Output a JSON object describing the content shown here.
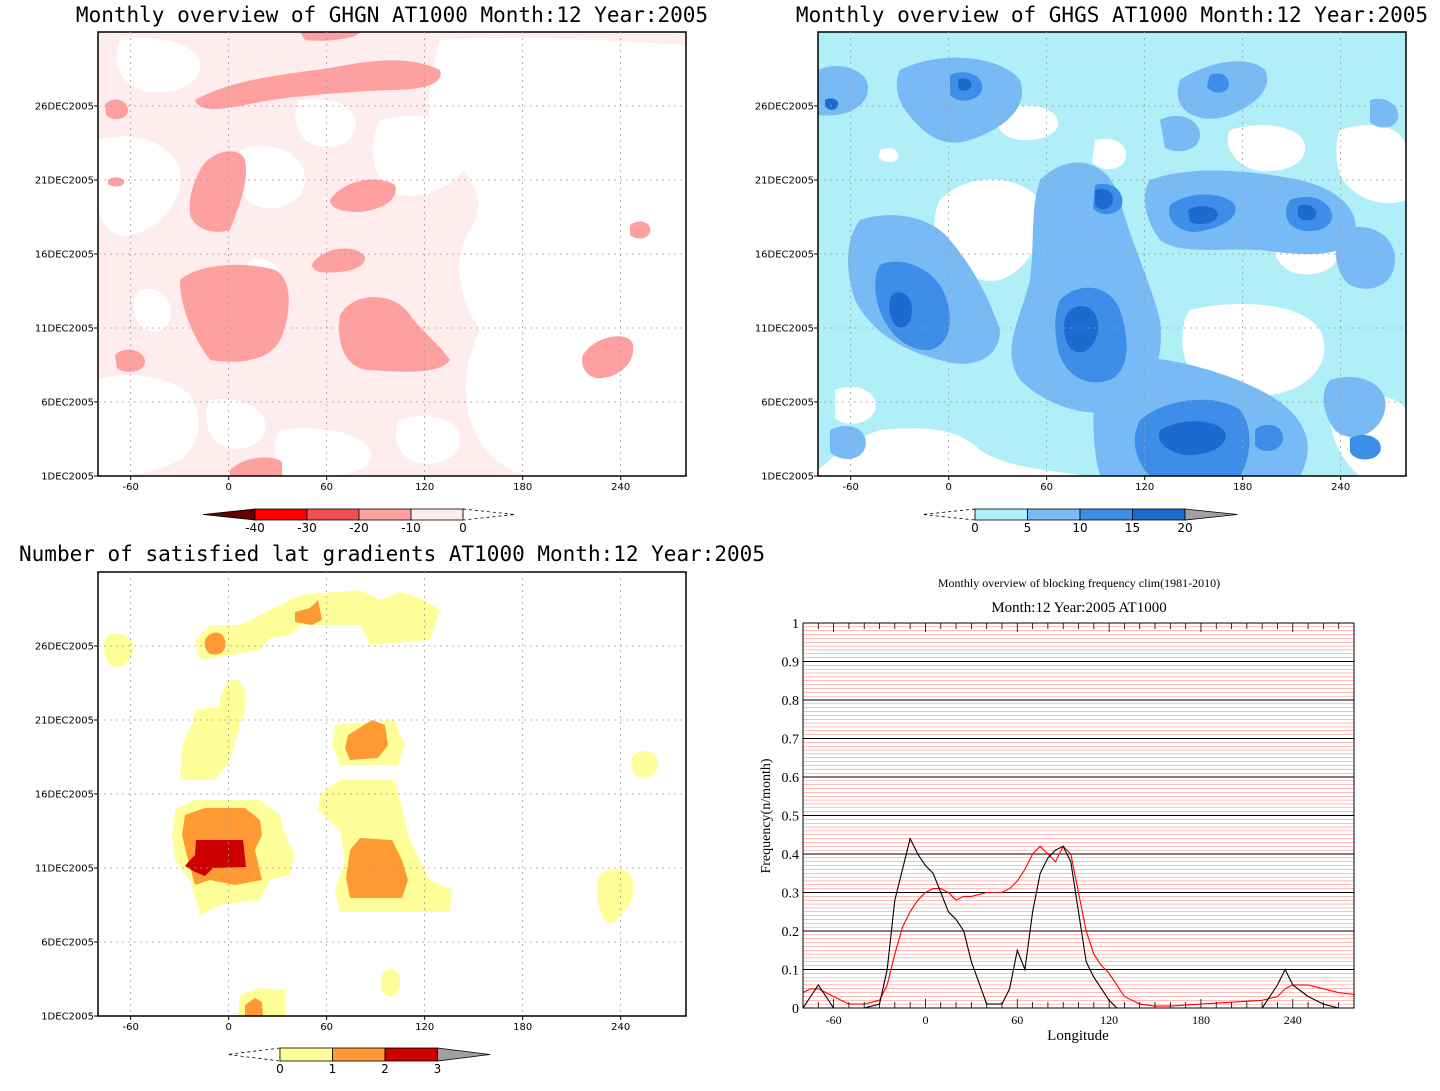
{
  "palette": {
    "ghgn": [
      "#640000",
      "#ff0000",
      "#f05050",
      "#ffa0a0",
      "#ffecec"
    ],
    "ghgs": [
      "#b0eef8",
      "#78baf5",
      "#3c8ee8",
      "#1a6ad0",
      "#a0a0a0"
    ],
    "count": [
      "#ffff99",
      "#ff9933",
      "#cc0000",
      "#a0a0a0"
    ],
    "clim_line": "#ff0000",
    "obs_line": "#000000"
  },
  "panels": [
    {
      "title": "Monthly overview of GHGN AT1000 Month:12 Year:2005",
      "yticks": [
        "1DEC2005",
        "6DEC2005",
        "11DEC2005",
        "16DEC2005",
        "21DEC2005",
        "26DEC2005"
      ],
      "xticks": [
        "-60",
        "0",
        "60",
        "120",
        "180",
        "240"
      ],
      "colorbar": [
        "-40",
        "-30",
        "-20",
        "-10",
        "0"
      ]
    },
    {
      "title": "Monthly overview of GHGS AT1000 Month:12 Year:2005",
      "yticks": [
        "1DEC2005",
        "6DEC2005",
        "11DEC2005",
        "16DEC2005",
        "21DEC2005",
        "26DEC2005"
      ],
      "xticks": [
        "-60",
        "0",
        "60",
        "120",
        "180",
        "240"
      ],
      "colorbar": [
        "0",
        "5",
        "10",
        "15",
        "20"
      ]
    },
    {
      "title": "Number of satisfied lat gradients AT1000 Month:12 Year:2005",
      "yticks": [
        "1DEC2005",
        "6DEC2005",
        "11DEC2005",
        "16DEC2005",
        "21DEC2005",
        "26DEC2005"
      ],
      "xticks": [
        "-60",
        "0",
        "60",
        "120",
        "180",
        "240"
      ],
      "colorbar": [
        "0",
        "1",
        "2",
        "3"
      ]
    }
  ],
  "chart_data": [
    {
      "type": "heatmap",
      "title": "Monthly overview of GHGN AT1000 Month:12 Year:2005",
      "xlim": [
        -80,
        280
      ],
      "ylim": [
        "1DEC2005",
        "31DEC2005"
      ],
      "levels": [
        -40,
        -30,
        -20,
        -10,
        0
      ],
      "regions_level_minus10": [
        {
          "lon": [
            -10,
            40
          ],
          "day": [
            13.5,
            16.5
          ]
        },
        {
          "lon": [
            70,
            140
          ],
          "day": [
            9.5,
            13
          ]
        },
        {
          "lon": [
            -20,
            20
          ],
          "day": [
            18.5,
            22.5
          ]
        },
        {
          "lon": [
            60,
            100
          ],
          "day": [
            19.5,
            21.5
          ]
        },
        {
          "lon": [
            -20,
            130
          ],
          "day": [
            26,
            28.5
          ]
        },
        {
          "lon": [
            215,
            240
          ],
          "day": [
            8.5,
            11.5
          ]
        }
      ]
    },
    {
      "type": "heatmap",
      "title": "Monthly overview of GHGS AT1000 Month:12 Year:2005",
      "xlim": [
        -80,
        280
      ],
      "ylim": [
        "1DEC2005",
        "31DEC2005"
      ],
      "levels": [
        0,
        5,
        10,
        15,
        20
      ],
      "regions_level_10": [
        {
          "lon": [
            -40,
            0
          ],
          "day": [
            11.5,
            14.5
          ]
        },
        {
          "lon": [
            65,
            115
          ],
          "day": [
            8.5,
            14
          ]
        },
        {
          "lon": [
            110,
            180
          ],
          "day": [
            1,
            5
          ]
        },
        {
          "lon": [
            140,
            230
          ],
          "day": [
            17,
            19.5
          ]
        }
      ]
    },
    {
      "type": "heatmap",
      "title": "Number of satisfied lat gradients AT1000 Month:12 Year:2005",
      "xlim": [
        -80,
        280
      ],
      "ylim": [
        "1DEC2005",
        "31DEC2005"
      ],
      "levels": [
        0,
        1,
        2,
        3
      ],
      "regions_level_3": [
        {
          "lon": [
            -25,
            10
          ],
          "day": [
            10.5,
            12.5
          ]
        }
      ]
    },
    {
      "type": "line",
      "title": "Monthly overview of blocking frequency clim(1981-2010)",
      "subtitle": "Month:12 Year:2005  AT1000",
      "xlabel": "Longitude",
      "ylabel": "Frequency(n/month)",
      "xlim": [
        -80,
        280
      ],
      "ylim": [
        0,
        1
      ],
      "xticks": [
        "-60",
        "0",
        "60",
        "120",
        "180",
        "240"
      ],
      "yticks": [
        "0",
        "0.1",
        "0.2",
        "0.3",
        "0.4",
        "0.5",
        "0.6",
        "0.7",
        "0.8",
        "0.9",
        "1"
      ],
      "x": [
        -80,
        -75,
        -70,
        -65,
        -60,
        -50,
        -40,
        -30,
        -25,
        -20,
        -15,
        -10,
        -5,
        0,
        5,
        10,
        15,
        20,
        25,
        30,
        40,
        50,
        55,
        60,
        65,
        70,
        75,
        80,
        85,
        90,
        95,
        100,
        105,
        110,
        115,
        120,
        125,
        130,
        140,
        150,
        160,
        180,
        200,
        220,
        230,
        235,
        240,
        250,
        260,
        270,
        280
      ],
      "series": [
        {
          "values": [
            0.04,
            0.05,
            0.05,
            0.04,
            0.03,
            0.01,
            0.01,
            0.02,
            0.06,
            0.14,
            0.21,
            0.25,
            0.28,
            0.3,
            0.31,
            0.31,
            0.3,
            0.28,
            0.29,
            0.29,
            0.3,
            0.3,
            0.31,
            0.33,
            0.36,
            0.4,
            0.42,
            0.4,
            0.38,
            0.42,
            0.4,
            0.3,
            0.2,
            0.14,
            0.11,
            0.09,
            0.06,
            0.03,
            0.01,
            0.005,
            0.005,
            0.01,
            0.015,
            0.02,
            0.03,
            0.05,
            0.06,
            0.06,
            0.05,
            0.04,
            0.035
          ]
        },
        {
          "values": [
            0.0,
            0.03,
            0.06,
            0.03,
            0.0,
            0.0,
            0.0,
            0.01,
            0.1,
            0.28,
            0.36,
            0.44,
            0.4,
            0.37,
            0.35,
            0.3,
            0.25,
            0.23,
            0.2,
            0.12,
            0.01,
            0.01,
            0.05,
            0.15,
            0.1,
            0.25,
            0.35,
            0.39,
            0.41,
            0.42,
            0.38,
            0.25,
            0.12,
            0.08,
            0.05,
            0.02,
            0.0,
            0.0,
            0.0,
            0.0,
            0.0,
            0.0,
            0.0,
            0.0,
            0.06,
            0.1,
            0.06,
            0.03,
            0.01,
            0.0,
            0.0
          ]
        }
      ]
    }
  ]
}
